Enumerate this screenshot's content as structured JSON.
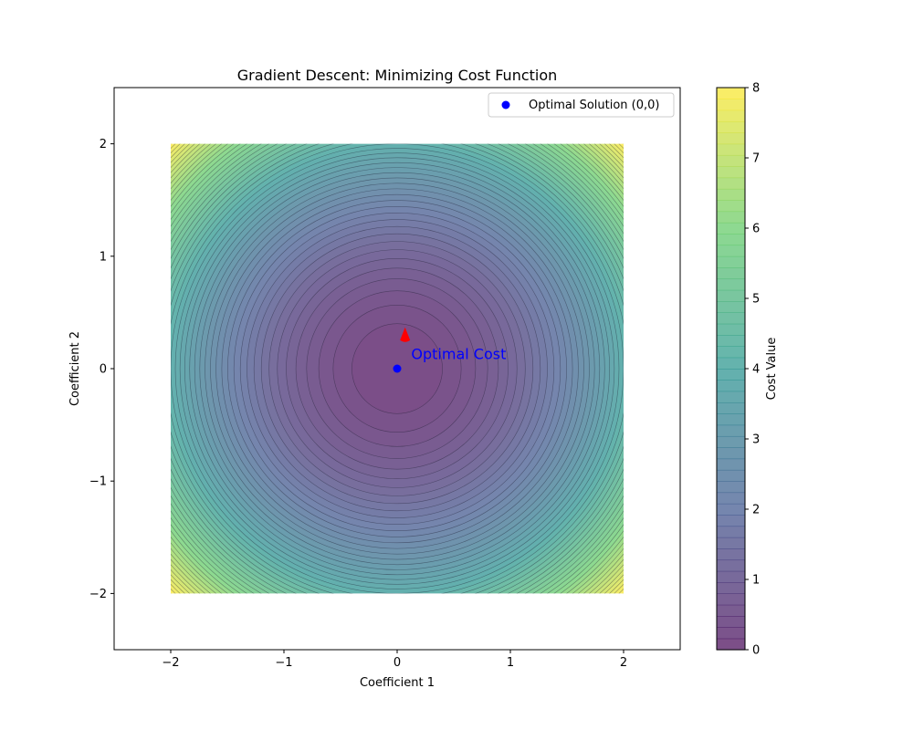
{
  "chart_data": {
    "type": "contour",
    "title": "Gradient Descent: Minimizing Cost Function",
    "xlabel": "Coefficient 1",
    "ylabel": "Coefficient 2",
    "xlim": [
      -2.5,
      2.5
    ],
    "ylim": [
      -2.5,
      2.5
    ],
    "xticks": [
      -2,
      -1,
      0,
      1,
      2
    ],
    "yticks": [
      -2,
      -1,
      0,
      1,
      2
    ],
    "xtick_labels": [
      "−2",
      "−1",
      "0",
      "1",
      "2"
    ],
    "ytick_labels": [
      "−2",
      "−1",
      "0",
      "1",
      "2"
    ],
    "grid": false,
    "legend_position": "top-right",
    "function": "x^2 + y^2",
    "domain": {
      "x": [
        -2,
        2
      ],
      "y": [
        -2,
        2
      ]
    },
    "contour_levels": {
      "min": 0,
      "max": 8,
      "step": 0.16
    },
    "colormap": "viridis",
    "fill_alpha": 0.7,
    "points": [
      {
        "name": "Optimal Solution (0,0)",
        "x": 0,
        "y": 0,
        "color": "#0000ff"
      }
    ],
    "annotations": [
      {
        "text": "Optimal Cost",
        "x": 0.1,
        "y": 0.1,
        "color": "#0000ff",
        "arrow_tip": {
          "x": 0.07,
          "y": 0.27
        },
        "arrow_color": "#ff0000"
      }
    ],
    "colorbar": {
      "label": "Cost Value",
      "ticks": [
        0,
        1,
        2,
        3,
        4,
        5,
        6,
        7,
        8
      ],
      "range": [
        0,
        8
      ]
    }
  }
}
